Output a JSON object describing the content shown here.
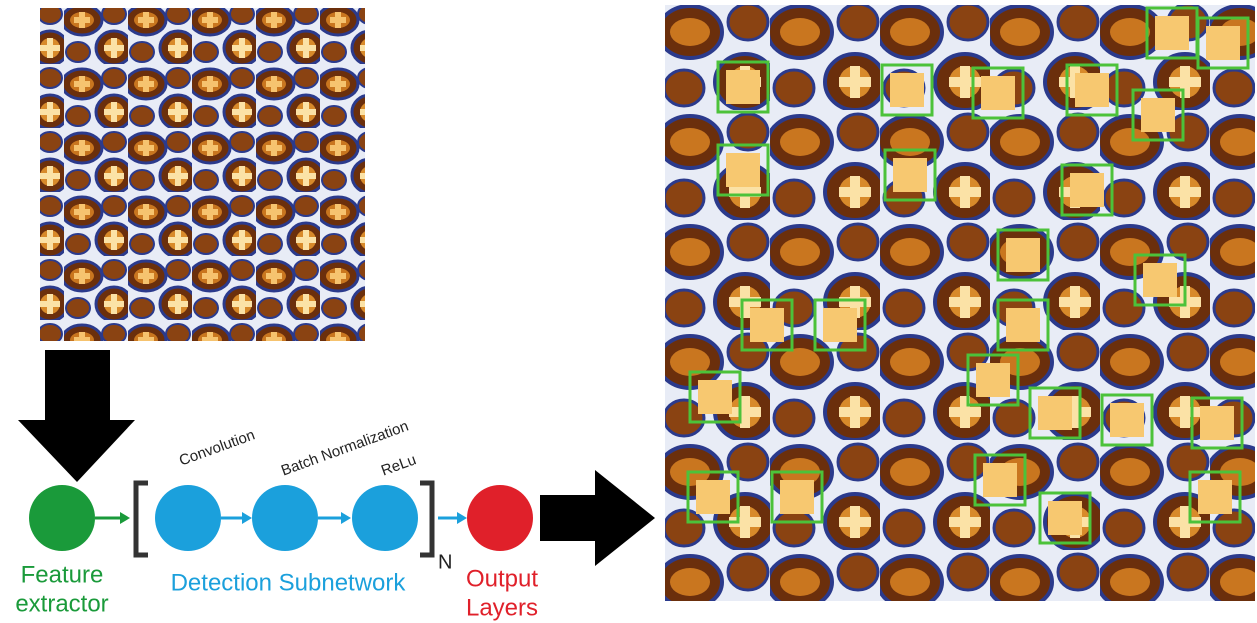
{
  "labels": {
    "convolution": "Convolution",
    "batch_normalization": "Batch Normalization",
    "relu": "ReLu",
    "repeat": "N",
    "feature_extractor": [
      "Feature",
      "extractor"
    ],
    "detection_subnetwork": "Detection Subnetwork",
    "output_layers": [
      "Output",
      "Layers"
    ]
  }
}
